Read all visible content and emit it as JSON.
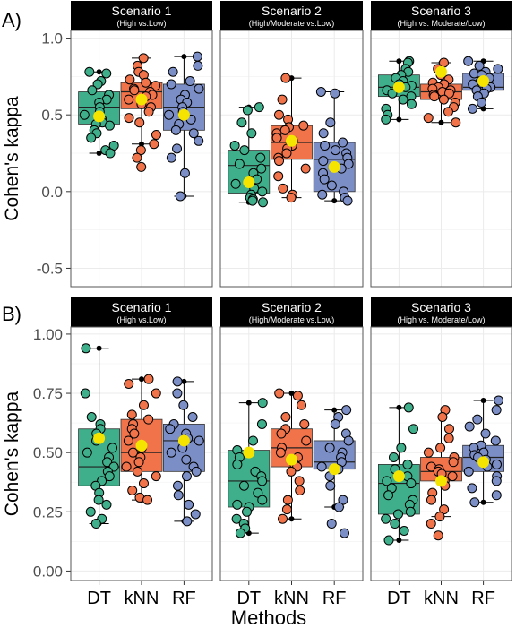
{
  "figure": {
    "x_axis_title": "Methods",
    "method_labels": [
      "DT",
      "kNN",
      "RF"
    ]
  },
  "colors": {
    "DT": "#3fae8a",
    "kNN": "#f0734a",
    "RF": "#7c8ec6",
    "mean": "#f4e400",
    "strip": "#000000",
    "grid": "#ebebeb",
    "border": "#555555"
  },
  "chart_data": [
    {
      "type": "box",
      "panel_label": "A)",
      "ylabel": "Cohen's kappa",
      "ylim": [
        -0.62,
        1.05
      ],
      "yticks": [
        -0.5,
        0.0,
        0.5,
        1.0
      ],
      "ytick_labels": [
        "-0.5",
        "0.0",
        "0.5",
        "1.0"
      ],
      "facets": [
        {
          "title": "Scenario 1",
          "subtitle": "(High vs.Low)",
          "boxes": [
            {
              "method": "DT",
              "whisker_low": 0.25,
              "q1": 0.44,
              "median": 0.55,
              "q3": 0.65,
              "whisker_high": 0.78,
              "mean": 0.49,
              "points": [
                0.78,
                0.77,
                0.72,
                0.7,
                0.66,
                0.63,
                0.6,
                0.58,
                0.55,
                0.52,
                0.5,
                0.47,
                0.45,
                0.44,
                0.43,
                0.4,
                0.38,
                0.35,
                0.3,
                0.27,
                0.25
              ]
            },
            {
              "method": "kNN",
              "whisker_low": 0.31,
              "q1": 0.54,
              "median": 0.65,
              "q3": 0.71,
              "whisker_high": 0.87,
              "mean": 0.6,
              "points": [
                0.87,
                0.82,
                0.78,
                0.76,
                0.73,
                0.71,
                0.69,
                0.67,
                0.66,
                0.65,
                0.63,
                0.62,
                0.6,
                0.57,
                0.55,
                0.52,
                0.48,
                0.45,
                0.37,
                0.31,
                0.27,
                0.22,
                0.16
              ]
            },
            {
              "method": "RF",
              "whisker_low": -0.03,
              "q1": 0.4,
              "median": 0.55,
              "q3": 0.7,
              "whisker_high": 0.88,
              "mean": 0.5,
              "points": [
                0.88,
                0.82,
                0.78,
                0.72,
                0.7,
                0.67,
                0.63,
                0.6,
                0.58,
                0.55,
                0.52,
                0.5,
                0.47,
                0.44,
                0.4,
                0.38,
                0.33,
                0.28,
                0.22,
                0.12,
                -0.03
              ]
            }
          ]
        },
        {
          "title": "Scenario 2",
          "subtitle": "(High/Moderate vs.Low)",
          "boxes": [
            {
              "method": "DT",
              "whisker_low": -0.07,
              "q1": -0.01,
              "median": 0.17,
              "q3": 0.27,
              "whisker_high": 0.55,
              "mean": 0.06,
              "points": [
                0.55,
                0.53,
                0.45,
                0.38,
                0.3,
                0.27,
                0.22,
                0.18,
                0.15,
                0.12,
                0.08,
                0.05,
                0.02,
                0.0,
                -0.02,
                -0.04,
                -0.05,
                -0.06,
                -0.07
              ]
            },
            {
              "method": "kNN",
              "whisker_low": -0.04,
              "q1": 0.21,
              "median": 0.32,
              "q3": 0.43,
              "whisker_high": 0.74,
              "mean": 0.33,
              "points": [
                0.74,
                0.6,
                0.5,
                0.47,
                0.43,
                0.42,
                0.4,
                0.38,
                0.35,
                0.33,
                0.3,
                0.28,
                0.25,
                0.22,
                0.2,
                0.15,
                0.1,
                0.02,
                -0.02,
                -0.04
              ]
            },
            {
              "method": "RF",
              "whisker_low": -0.06,
              "q1": 0.0,
              "median": 0.21,
              "q3": 0.32,
              "whisker_high": 0.65,
              "mean": 0.16,
              "points": [
                0.65,
                0.64,
                0.45,
                0.38,
                0.32,
                0.3,
                0.27,
                0.25,
                0.22,
                0.2,
                0.18,
                0.15,
                0.12,
                0.08,
                0.04,
                0.0,
                -0.02,
                -0.04,
                -0.06
              ]
            }
          ]
        },
        {
          "title": "Scenario 3",
          "subtitle": "(High vs. Moderate/Low)",
          "boxes": [
            {
              "method": "DT",
              "whisker_low": 0.47,
              "q1": 0.62,
              "median": 0.68,
              "q3": 0.76,
              "whisker_high": 0.85,
              "mean": 0.68,
              "points": [
                0.85,
                0.84,
                0.8,
                0.78,
                0.76,
                0.74,
                0.72,
                0.7,
                0.69,
                0.68,
                0.66,
                0.64,
                0.62,
                0.6,
                0.57,
                0.54,
                0.5,
                0.47
              ]
            },
            {
              "method": "kNN",
              "whisker_low": 0.45,
              "q1": 0.6,
              "median": 0.65,
              "q3": 0.7,
              "whisker_high": 0.84,
              "mean": 0.78,
              "points": [
                0.84,
                0.8,
                0.78,
                0.76,
                0.73,
                0.71,
                0.7,
                0.68,
                0.67,
                0.66,
                0.65,
                0.64,
                0.63,
                0.62,
                0.6,
                0.58,
                0.55,
                0.52,
                0.48,
                0.45
              ]
            },
            {
              "method": "RF",
              "whisker_low": 0.54,
              "q1": 0.66,
              "median": 0.68,
              "q3": 0.77,
              "whisker_high": 0.85,
              "mean": 0.72,
              "points": [
                0.85,
                0.82,
                0.8,
                0.78,
                0.77,
                0.76,
                0.74,
                0.72,
                0.7,
                0.68,
                0.67,
                0.66,
                0.64,
                0.62,
                0.58,
                0.54
              ]
            }
          ]
        }
      ]
    },
    {
      "type": "box",
      "panel_label": "B)",
      "ylabel": "Cohen's kappa",
      "ylim": [
        -0.04,
        1.03
      ],
      "yticks": [
        0.0,
        0.25,
        0.5,
        0.75,
        1.0
      ],
      "ytick_labels": [
        "0.00",
        "0.25",
        "0.50",
        "0.75",
        "1.00"
      ],
      "facets": [
        {
          "title": "Scenario 1",
          "subtitle": "(High vs.Low)",
          "boxes": [
            {
              "method": "DT",
              "whisker_low": 0.2,
              "q1": 0.36,
              "median": 0.44,
              "q3": 0.6,
              "whisker_high": 0.94,
              "mean": 0.56,
              "points": [
                0.94,
                0.75,
                0.65,
                0.62,
                0.6,
                0.58,
                0.55,
                0.52,
                0.5,
                0.48,
                0.46,
                0.44,
                0.42,
                0.4,
                0.38,
                0.36,
                0.33,
                0.3,
                0.28,
                0.25,
                0.22,
                0.2
              ]
            },
            {
              "method": "kNN",
              "whisker_low": 0.3,
              "q1": 0.42,
              "median": 0.5,
              "q3": 0.64,
              "whisker_high": 0.81,
              "mean": 0.53,
              "points": [
                0.81,
                0.79,
                0.75,
                0.7,
                0.66,
                0.64,
                0.62,
                0.6,
                0.58,
                0.55,
                0.52,
                0.5,
                0.48,
                0.46,
                0.44,
                0.42,
                0.4,
                0.37,
                0.34,
                0.31,
                0.3
              ]
            },
            {
              "method": "RF",
              "whisker_low": 0.21,
              "q1": 0.42,
              "median": 0.55,
              "q3": 0.62,
              "whisker_high": 0.8,
              "mean": 0.55,
              "points": [
                0.8,
                0.75,
                0.7,
                0.65,
                0.62,
                0.6,
                0.58,
                0.56,
                0.55,
                0.52,
                0.5,
                0.47,
                0.44,
                0.42,
                0.4,
                0.36,
                0.32,
                0.28,
                0.24,
                0.21
              ]
            }
          ]
        },
        {
          "title": "Scenario 2",
          "subtitle": "(High/Moderate vs.Low)",
          "boxes": [
            {
              "method": "DT",
              "whisker_low": 0.16,
              "q1": 0.27,
              "median": 0.38,
              "q3": 0.51,
              "whisker_high": 0.71,
              "mean": 0.5,
              "points": [
                0.71,
                0.62,
                0.55,
                0.51,
                0.48,
                0.45,
                0.42,
                0.4,
                0.38,
                0.36,
                0.33,
                0.3,
                0.28,
                0.27,
                0.25,
                0.22,
                0.2,
                0.18,
                0.16
              ]
            },
            {
              "method": "kNN",
              "whisker_low": 0.22,
              "q1": 0.44,
              "median": 0.52,
              "q3": 0.6,
              "whisker_high": 0.75,
              "mean": 0.47,
              "points": [
                0.75,
                0.74,
                0.7,
                0.65,
                0.62,
                0.6,
                0.58,
                0.55,
                0.52,
                0.5,
                0.48,
                0.45,
                0.44,
                0.42,
                0.38,
                0.34,
                0.3,
                0.26,
                0.22
              ]
            },
            {
              "method": "RF",
              "whisker_low": 0.27,
              "q1": 0.43,
              "median": 0.46,
              "q3": 0.55,
              "whisker_high": 0.68,
              "mean": 0.43,
              "points": [
                0.68,
                0.65,
                0.62,
                0.58,
                0.55,
                0.52,
                0.5,
                0.48,
                0.46,
                0.44,
                0.43,
                0.4,
                0.36,
                0.3,
                0.27,
                0.2,
                0.16
              ]
            }
          ]
        },
        {
          "title": "Scenario 3",
          "subtitle": "(High vs. Moderate/Low)",
          "boxes": [
            {
              "method": "DT",
              "whisker_low": 0.13,
              "q1": 0.24,
              "median": 0.37,
              "q3": 0.45,
              "whisker_high": 0.69,
              "mean": 0.4,
              "points": [
                0.69,
                0.6,
                0.52,
                0.48,
                0.45,
                0.43,
                0.4,
                0.38,
                0.37,
                0.35,
                0.32,
                0.3,
                0.28,
                0.25,
                0.24,
                0.22,
                0.2,
                0.17,
                0.13
              ]
            },
            {
              "method": "kNN",
              "whisker_low": 0.23,
              "q1": 0.38,
              "median": 0.42,
              "q3": 0.48,
              "whisker_high": 0.65,
              "mean": 0.38,
              "points": [
                0.68,
                0.65,
                0.6,
                0.56,
                0.52,
                0.5,
                0.48,
                0.46,
                0.44,
                0.43,
                0.42,
                0.41,
                0.4,
                0.38,
                0.36,
                0.33,
                0.3,
                0.26,
                0.23,
                0.2,
                0.15
              ]
            },
            {
              "method": "RF",
              "whisker_low": 0.29,
              "q1": 0.42,
              "median": 0.48,
              "q3": 0.53,
              "whisker_high": 0.72,
              "mean": 0.46,
              "points": [
                0.72,
                0.68,
                0.64,
                0.61,
                0.58,
                0.55,
                0.53,
                0.52,
                0.5,
                0.49,
                0.48,
                0.47,
                0.45,
                0.44,
                0.42,
                0.4,
                0.38,
                0.35,
                0.32,
                0.29
              ]
            }
          ]
        }
      ]
    }
  ]
}
